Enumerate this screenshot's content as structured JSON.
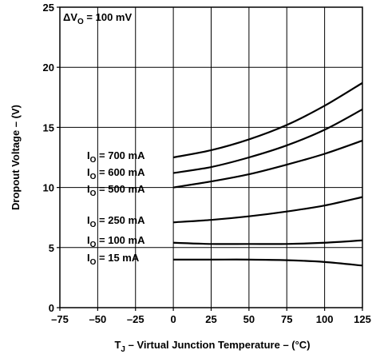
{
  "chart_data": {
    "type": "line",
    "title": "",
    "annotation": {
      "prefix": "ΔV",
      "sub": "O",
      "suffix": " = 100 mV"
    },
    "xlabel": {
      "prefix": "T",
      "sub": "J",
      "suffix": " – Virtual Junction Temperature – (°C)"
    },
    "ylabel": "Dropout Voltage – (V)",
    "xlim": [
      -75,
      125
    ],
    "ylim": [
      0,
      25
    ],
    "xticks": [
      -75,
      -50,
      -25,
      0,
      25,
      50,
      75,
      100,
      125
    ],
    "yticks": [
      0,
      5,
      10,
      15,
      20,
      25
    ],
    "xtick_labels": [
      "–75",
      "–50",
      "–25",
      "0",
      "25",
      "50",
      "75",
      "100",
      "125"
    ],
    "ytick_labels": [
      "0",
      "5",
      "10",
      "15",
      "20",
      "25"
    ],
    "grid": true,
    "legend": "none",
    "series": [
      {
        "name": "IO = 700 mA",
        "label": {
          "prefix": "I",
          "sub": "O",
          "suffix": " = 700 mA"
        },
        "x": [
          0,
          25,
          50,
          75,
          100,
          125
        ],
        "y": [
          12.5,
          13.1,
          14.0,
          15.2,
          16.8,
          18.7
        ]
      },
      {
        "name": "IO = 600 mA",
        "label": {
          "prefix": "I",
          "sub": "O",
          "suffix": " = 600 mA"
        },
        "x": [
          0,
          25,
          50,
          75,
          100,
          125
        ],
        "y": [
          11.2,
          11.7,
          12.5,
          13.5,
          14.8,
          16.5
        ]
      },
      {
        "name": "IO = 500 mA",
        "label": {
          "prefix": "I",
          "sub": "O",
          "suffix": " = 500 mA"
        },
        "x": [
          0,
          25,
          50,
          75,
          100,
          125
        ],
        "y": [
          10.0,
          10.5,
          11.1,
          11.9,
          12.8,
          13.9
        ]
      },
      {
        "name": "IO = 250 mA",
        "label": {
          "prefix": "I",
          "sub": "O",
          "suffix": " = 250 mA"
        },
        "x": [
          0,
          25,
          50,
          75,
          100,
          125
        ],
        "y": [
          7.1,
          7.3,
          7.6,
          8.0,
          8.5,
          9.2
        ]
      },
      {
        "name": "IO = 100 mA",
        "label": {
          "prefix": "I",
          "sub": "O",
          "suffix": " = 100 mA"
        },
        "x": [
          0,
          25,
          50,
          75,
          100,
          125
        ],
        "y": [
          5.4,
          5.3,
          5.3,
          5.3,
          5.4,
          5.6
        ]
      },
      {
        "name": "IO = 15 mA",
        "label": {
          "prefix": "I",
          "sub": "O",
          "suffix": " = 15 mA"
        },
        "x": [
          0,
          25,
          50,
          75,
          100,
          125
        ],
        "y": [
          4.0,
          4.0,
          4.0,
          3.95,
          3.8,
          3.5
        ]
      }
    ]
  }
}
